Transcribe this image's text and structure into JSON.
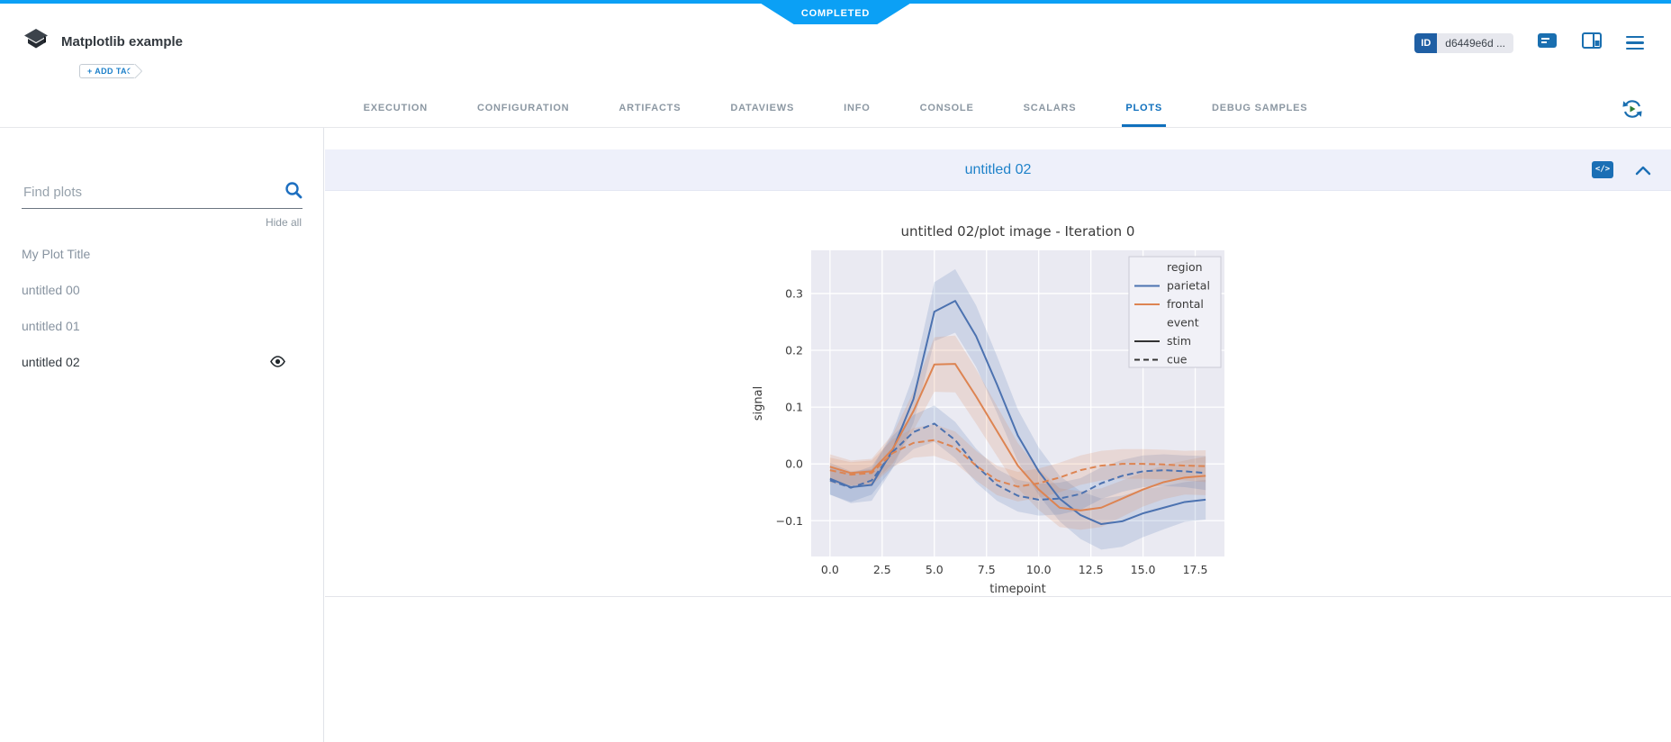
{
  "header": {
    "status_badge": "COMPLETED",
    "app_title": "Matplotlib example",
    "add_tag_label": "+ ADD TAG",
    "id_label": "ID",
    "id_value": "d6449e6d ...",
    "tabs": [
      "EXECUTION",
      "CONFIGURATION",
      "ARTIFACTS",
      "DATAVIEWS",
      "INFO",
      "CONSOLE",
      "SCALARS",
      "PLOTS",
      "DEBUG SAMPLES"
    ],
    "active_tab": "PLOTS"
  },
  "sidebar": {
    "search_placeholder": "Find plots",
    "hide_all_label": "Hide all",
    "items": [
      {
        "label": "My Plot Title",
        "selected": false,
        "visible_icon": false
      },
      {
        "label": "untitled 00",
        "selected": false,
        "visible_icon": false
      },
      {
        "label": "untitled 01",
        "selected": false,
        "visible_icon": false
      },
      {
        "label": "untitled 02",
        "selected": true,
        "visible_icon": true
      }
    ]
  },
  "plot_panel": {
    "title": "untitled 02",
    "code_icon_label": "</>"
  },
  "colors": {
    "accent_blue": "#0ba0f5",
    "tab_active_blue": "#1070bd",
    "icon_blue": "#1a6fb0",
    "panel_title_blue": "#2083ca",
    "axes_bg": "#eaeaf2",
    "grid": "#ffffff",
    "series_blue": "#4c72b0",
    "series_orange": "#dd8452",
    "legend_dark": "#333333",
    "figure_text": "#3b3b3b"
  },
  "chart_data": {
    "type": "line",
    "title": "untitled 02/plot image - Iteration 0",
    "xlabel": "timepoint",
    "ylabel": "signal",
    "xlim": [
      -0.9,
      18.9
    ],
    "ylim": [
      -0.163,
      0.376
    ],
    "grid": true,
    "legend_position": "upper right",
    "x_ticks": [
      {
        "v": 0,
        "label": "0.0"
      },
      {
        "v": 2.5,
        "label": "2.5"
      },
      {
        "v": 5,
        "label": "5.0"
      },
      {
        "v": 7.5,
        "label": "7.5"
      },
      {
        "v": 10,
        "label": "10.0"
      },
      {
        "v": 12.5,
        "label": "12.5"
      },
      {
        "v": 15,
        "label": "15.0"
      },
      {
        "v": 17.5,
        "label": "17.5"
      }
    ],
    "y_ticks": [
      {
        "v": 0.3,
        "label": "0.3"
      },
      {
        "v": 0.2,
        "label": "0.2"
      },
      {
        "v": 0.1,
        "label": "0.1"
      },
      {
        "v": 0.0,
        "label": "0.0"
      },
      {
        "v": -0.1,
        "label": "−0.1"
      }
    ],
    "x": [
      0,
      1,
      2,
      3,
      4,
      5,
      6,
      7,
      8,
      9,
      10,
      11,
      12,
      13,
      14,
      15,
      16,
      17,
      18
    ],
    "series": [
      {
        "name": "parietal-stim",
        "region": "parietal",
        "event": "stim",
        "color": "#4c72b0",
        "dash": false,
        "values": [
          -0.026,
          -0.041,
          -0.037,
          0.024,
          0.114,
          0.268,
          0.287,
          0.225,
          0.14,
          0.05,
          -0.013,
          -0.061,
          -0.09,
          -0.106,
          -0.101,
          -0.087,
          -0.077,
          -0.067,
          -0.063
        ],
        "band": [
          0.028,
          0.028,
          0.028,
          0.032,
          0.042,
          0.052,
          0.056,
          0.054,
          0.05,
          0.046,
          0.042,
          0.04,
          0.042,
          0.045,
          0.045,
          0.042,
          0.038,
          0.035,
          0.035
        ]
      },
      {
        "name": "frontal-stim",
        "region": "frontal",
        "event": "stim",
        "color": "#dd8452",
        "dash": false,
        "values": [
          -0.005,
          -0.016,
          -0.013,
          0.026,
          0.093,
          0.175,
          0.176,
          0.119,
          0.058,
          -0.003,
          -0.045,
          -0.077,
          -0.082,
          -0.077,
          -0.061,
          -0.045,
          -0.032,
          -0.024,
          -0.021
        ],
        "band": [
          0.022,
          0.022,
          0.022,
          0.026,
          0.034,
          0.048,
          0.05,
          0.048,
          0.044,
          0.04,
          0.036,
          0.034,
          0.034,
          0.034,
          0.032,
          0.03,
          0.03,
          0.03,
          0.034
        ]
      },
      {
        "name": "parietal-cue",
        "region": "parietal",
        "event": "cue",
        "color": "#4c72b0",
        "dash": true,
        "values": [
          -0.029,
          -0.042,
          -0.029,
          0.021,
          0.056,
          0.071,
          0.042,
          -0.003,
          -0.037,
          -0.056,
          -0.063,
          -0.061,
          -0.053,
          -0.034,
          -0.021,
          -0.013,
          -0.011,
          -0.013,
          -0.016
        ],
        "band": [
          0.025,
          0.025,
          0.025,
          0.028,
          0.03,
          0.032,
          0.032,
          0.03,
          0.028,
          0.028,
          0.028,
          0.028,
          0.028,
          0.028,
          0.028,
          0.028,
          0.028,
          0.028,
          0.03
        ]
      },
      {
        "name": "frontal-cue",
        "region": "frontal",
        "event": "cue",
        "color": "#dd8452",
        "dash": true,
        "values": [
          -0.011,
          -0.019,
          -0.016,
          0.019,
          0.037,
          0.042,
          0.029,
          -0.003,
          -0.029,
          -0.04,
          -0.034,
          -0.024,
          -0.011,
          -0.003,
          0.0,
          0.0,
          -0.001,
          -0.003,
          -0.004
        ],
        "band": [
          0.022,
          0.022,
          0.022,
          0.024,
          0.026,
          0.028,
          0.028,
          0.026,
          0.026,
          0.026,
          0.026,
          0.026,
          0.026,
          0.026,
          0.026,
          0.026,
          0.026,
          0.026,
          0.028
        ]
      }
    ],
    "legend": [
      {
        "header": "region"
      },
      {
        "label": "parietal",
        "color": "#4c72b0",
        "dash": false
      },
      {
        "label": "frontal",
        "color": "#dd8452",
        "dash": false
      },
      {
        "header": "event"
      },
      {
        "label": "stim",
        "color": "#333333",
        "dash": false
      },
      {
        "label": "cue",
        "color": "#333333",
        "dash": true
      }
    ]
  }
}
